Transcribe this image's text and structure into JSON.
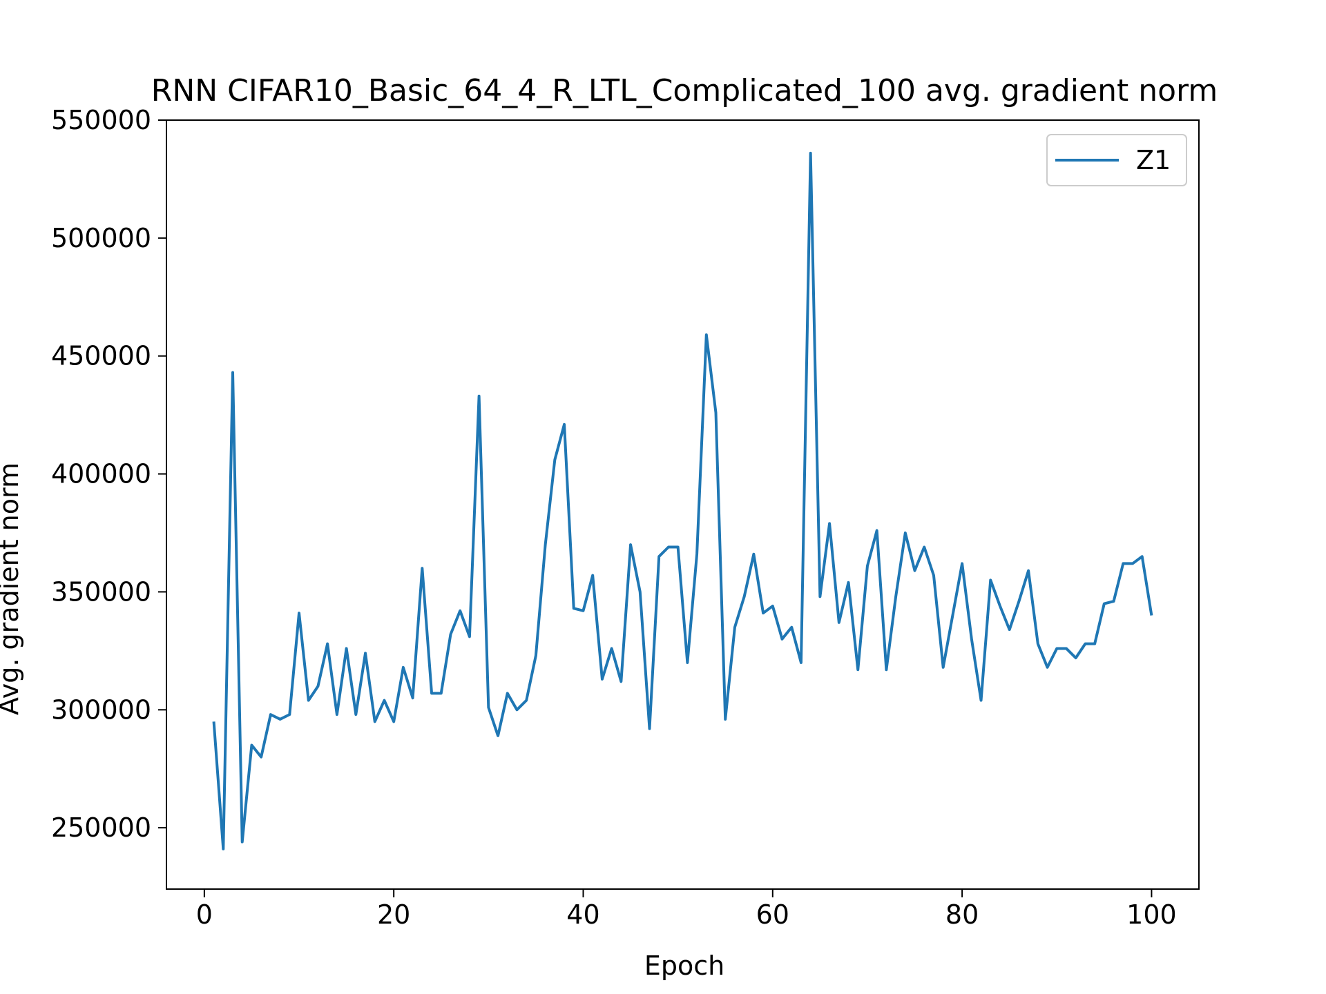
{
  "chart_data": {
    "type": "line",
    "title": "RNN CIFAR10_Basic_64_4_R_LTL_Complicated_100 avg. gradient norm",
    "xlabel": "Epoch",
    "ylabel": "Avg. gradient norm",
    "xlim": [
      -4,
      105
    ],
    "ylim": [
      224000,
      550000
    ],
    "xticks": [
      0,
      20,
      40,
      60,
      80,
      100
    ],
    "xtick_labels": [
      "0",
      "20",
      "40",
      "60",
      "80",
      "100"
    ],
    "yticks": [
      250000,
      300000,
      350000,
      400000,
      450000,
      500000,
      550000
    ],
    "ytick_labels": [
      "250000",
      "300000",
      "350000",
      "400000",
      "450000",
      "500000",
      "550000"
    ],
    "grid": false,
    "legend_position": "upper right",
    "series": [
      {
        "name": "Z1",
        "color": "#1f77b4",
        "x": [
          1,
          2,
          3,
          4,
          5,
          6,
          7,
          8,
          9,
          10,
          11,
          12,
          13,
          14,
          15,
          16,
          17,
          18,
          19,
          20,
          21,
          22,
          23,
          24,
          25,
          26,
          27,
          28,
          29,
          30,
          31,
          32,
          33,
          34,
          35,
          36,
          37,
          38,
          39,
          40,
          41,
          42,
          43,
          44,
          45,
          46,
          47,
          48,
          49,
          50,
          51,
          52,
          53,
          54,
          55,
          56,
          57,
          58,
          59,
          60,
          61,
          62,
          63,
          64,
          65,
          66,
          67,
          68,
          69,
          70,
          71,
          72,
          73,
          74,
          75,
          76,
          77,
          78,
          79,
          80,
          81,
          82,
          83,
          84,
          85,
          86,
          87,
          88,
          89,
          90,
          91,
          92,
          93,
          94,
          95,
          96,
          97,
          98,
          99,
          100
        ],
        "values": [
          295000,
          241000,
          443000,
          244000,
          285000,
          280000,
          298000,
          296000,
          298000,
          341000,
          304000,
          310000,
          328000,
          298000,
          326000,
          298000,
          324000,
          295000,
          304000,
          295000,
          318000,
          305000,
          360000,
          307000,
          307000,
          332000,
          342000,
          331000,
          433000,
          301000,
          289000,
          307000,
          300000,
          304000,
          323000,
          370000,
          406000,
          421000,
          343000,
          342000,
          357000,
          313000,
          326000,
          312000,
          370000,
          350000,
          292000,
          365000,
          369000,
          369000,
          320000,
          366000,
          459000,
          426000,
          296000,
          335000,
          348000,
          366000,
          341000,
          344000,
          330000,
          335000,
          320000,
          536000,
          348000,
          379000,
          337000,
          354000,
          317000,
          361000,
          376000,
          317000,
          348000,
          375000,
          359000,
          369000,
          357000,
          318000,
          340000,
          362000,
          330000,
          304000,
          355000,
          344000,
          334000,
          346000,
          359000,
          328000,
          318000,
          326000,
          326000,
          322000,
          328000,
          328000,
          345000,
          346000,
          362000,
          362000,
          365000,
          340000
        ]
      }
    ]
  }
}
